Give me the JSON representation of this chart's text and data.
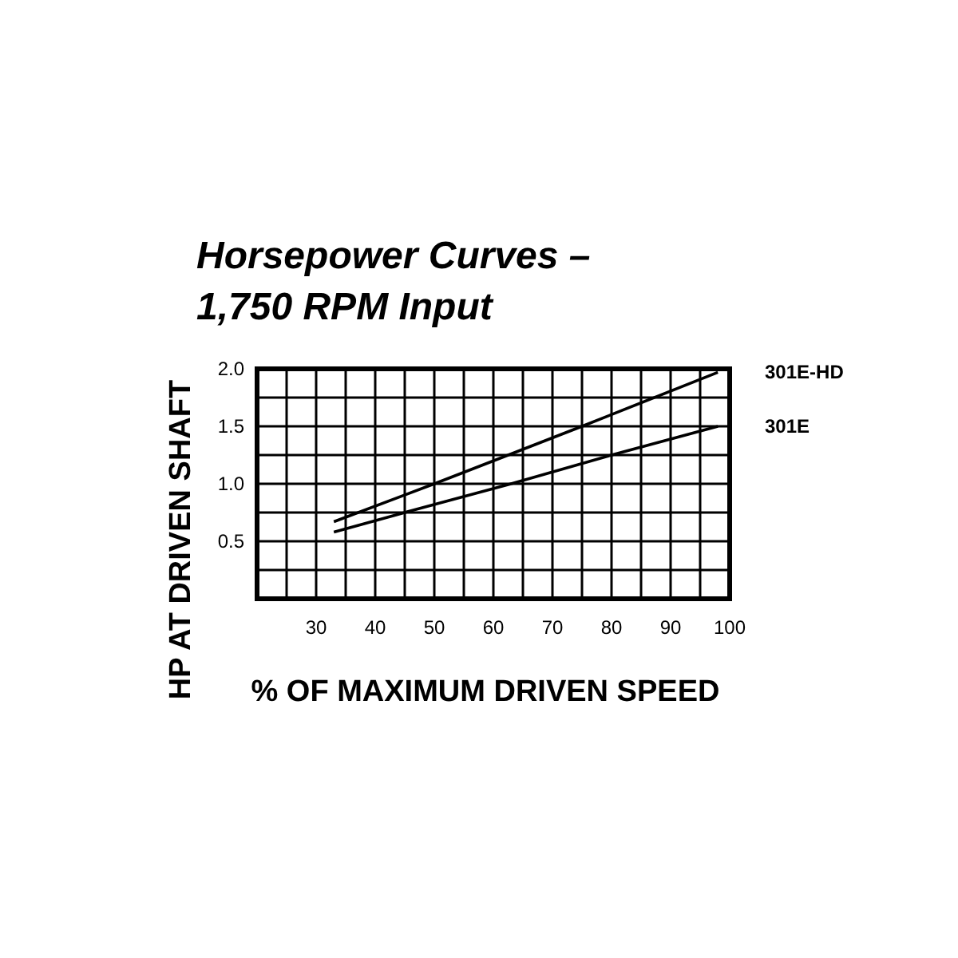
{
  "chart_data": {
    "type": "line",
    "title": "Horsepower Curves –\n1,750 RPM Input",
    "xlabel": "% OF MAXIMUM DRIVEN SPEED",
    "ylabel": "HP AT DRIVEN SHAFT",
    "xlim": [
      20,
      100
    ],
    "ylim": [
      0,
      2.0
    ],
    "xticks": [
      {
        "value": 20,
        "label": null
      },
      {
        "value": 25,
        "label": null
      },
      30,
      {
        "value": 35,
        "label": null
      },
      40,
      {
        "value": 45,
        "label": null
      },
      50,
      {
        "value": 55,
        "label": null
      },
      60,
      {
        "value": 65,
        "label": null
      },
      70,
      {
        "value": 75,
        "label": null
      },
      80,
      {
        "value": 85,
        "label": null
      },
      90,
      {
        "value": 95,
        "label": null
      },
      100
    ],
    "yticks": [
      {
        "value": 0,
        "label": null
      },
      {
        "value": 0.25,
        "label": null
      },
      0.5,
      {
        "value": 0.75,
        "label": null
      },
      {
        "value": 1.0,
        "label": "1.0"
      },
      {
        "value": 1.25,
        "label": null
      },
      1.5,
      {
        "value": 1.75,
        "label": null
      },
      {
        "value": 2.0,
        "label": "2.0"
      }
    ],
    "grid": true,
    "legend": false,
    "marker": "none",
    "line_style": "solid",
    "series": [
      {
        "name": "301E-HD",
        "color": "#000000",
        "x": [
          33,
          50,
          60,
          75,
          98
        ],
        "values": [
          0.67,
          1.0,
          1.2,
          1.5,
          1.97
        ]
      },
      {
        "name": "301E",
        "color": "#000000",
        "x": [
          33,
          45,
          63,
          80,
          98
        ],
        "values": [
          0.58,
          0.75,
          1.0,
          1.25,
          1.5
        ]
      }
    ]
  }
}
